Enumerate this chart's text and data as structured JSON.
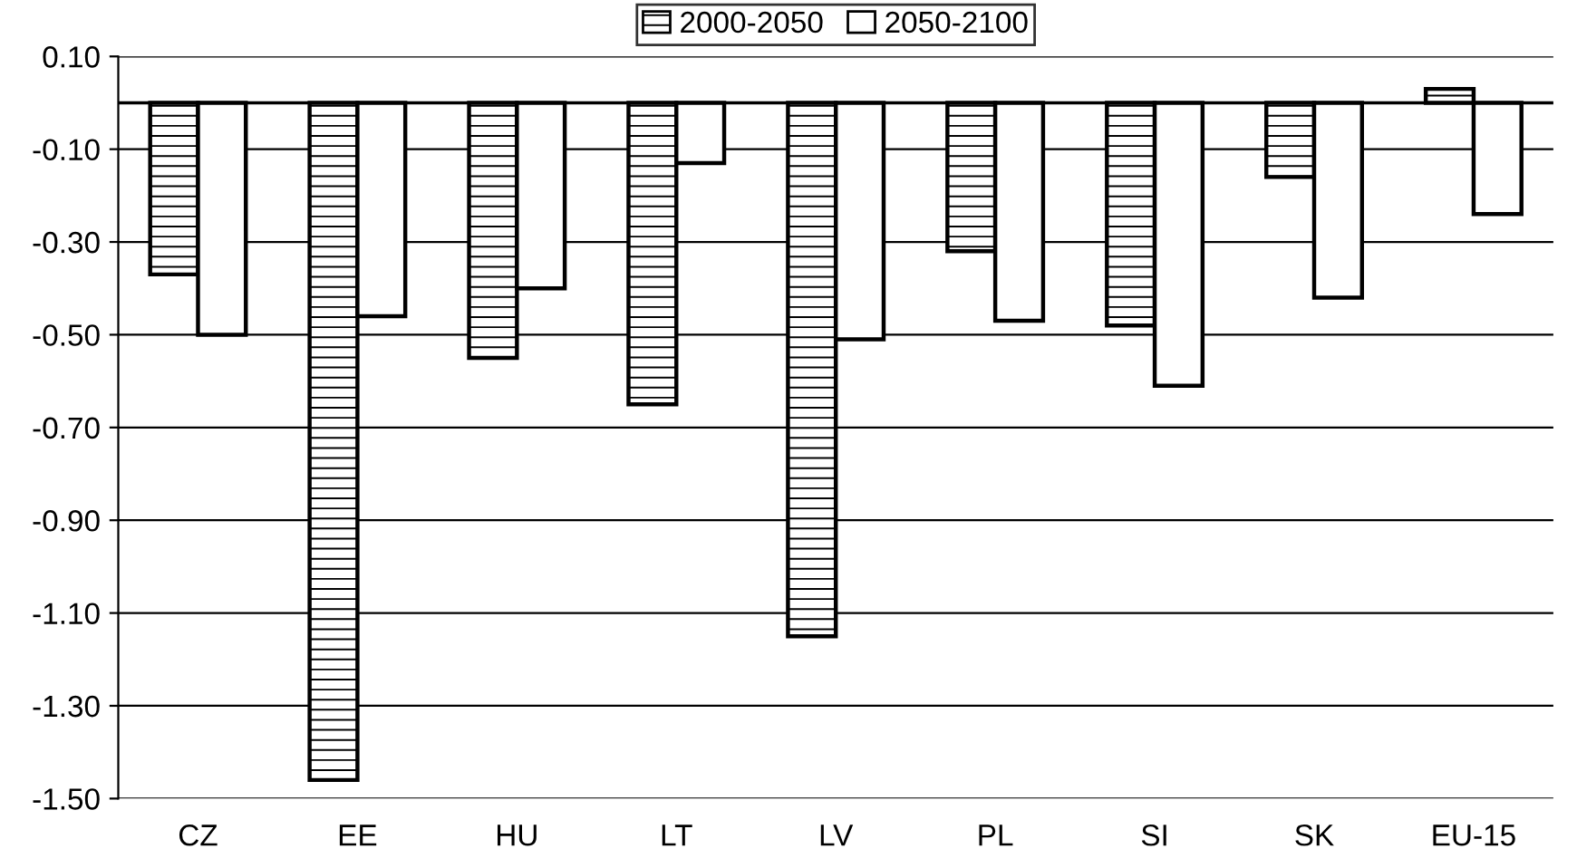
{
  "chart_data": {
    "type": "bar",
    "categories": [
      "CZ",
      "EE",
      "HU",
      "LT",
      "LV",
      "PL",
      "SI",
      "SK",
      "EU-15"
    ],
    "series": [
      {
        "name": "2000-2050",
        "color": "#000000",
        "values": [
          -0.37,
          -1.46,
          -0.55,
          -0.65,
          -1.15,
          -0.32,
          -0.48,
          -0.16,
          0.03
        ]
      },
      {
        "name": "2050-2100",
        "color": "#ffffff",
        "values": [
          -0.5,
          -0.46,
          -0.4,
          -0.13,
          -0.51,
          -0.47,
          -0.61,
          -0.42,
          -0.24
        ]
      }
    ],
    "ylim": [
      -1.5,
      0.1
    ],
    "yticks": [
      {
        "value": 0.1,
        "label": "0.10"
      },
      {
        "value": -0.1,
        "label": "-0.10"
      },
      {
        "value": -0.3,
        "label": "-0.30"
      },
      {
        "value": -0.5,
        "label": "-0.50"
      },
      {
        "value": -0.7,
        "label": "-0.70"
      },
      {
        "value": -0.9,
        "label": "-0.90"
      },
      {
        "value": -1.1,
        "label": "-1.10"
      },
      {
        "value": -1.3,
        "label": "-1.30"
      },
      {
        "value": -1.5,
        "label": "-1.50"
      }
    ],
    "grid": "y",
    "legend": "top"
  }
}
